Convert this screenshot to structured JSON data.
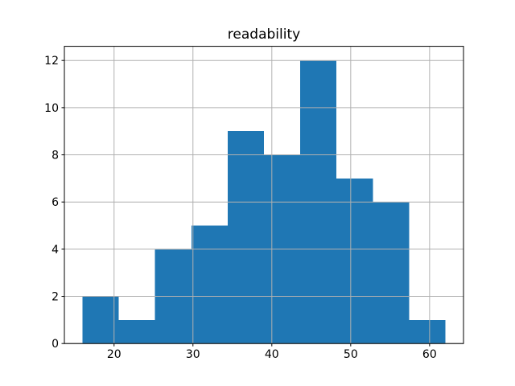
{
  "chart_data": {
    "type": "bar",
    "subtype": "histogram",
    "title": "readability",
    "xlabel": "",
    "ylabel": "",
    "bin_edges": [
      16.0,
      20.6,
      25.2,
      29.8,
      34.4,
      39.0,
      43.6,
      48.2,
      52.8,
      57.4,
      62.0
    ],
    "counts": [
      2,
      1,
      4,
      5,
      9,
      8,
      12,
      7,
      6,
      1
    ],
    "x_ticks": [
      20,
      30,
      40,
      50,
      60
    ],
    "y_ticks": [
      0,
      2,
      4,
      6,
      8,
      10,
      12
    ],
    "xlim": [
      13.7,
      64.3
    ],
    "ylim": [
      0,
      12.6
    ],
    "grid": true,
    "legend": false,
    "bar_color": "#1f77b4",
    "grid_color": "#b0b0b0",
    "spine_color": "#000000",
    "background_color": "#ffffff"
  }
}
